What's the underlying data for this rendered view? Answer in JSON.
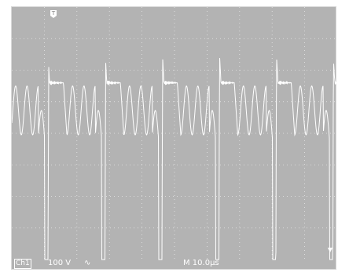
{
  "status": {
    "channel": "Ch1",
    "volts_per_div": "100 V",
    "coupling_symbol": "∿",
    "timebase": "M 10.0μs"
  },
  "markers": {
    "trigger": "T",
    "ground": "▼"
  },
  "colors": {
    "background": "#b3b3b3",
    "trace": "#ffffff",
    "grid": "#e6e6e6"
  },
  "chart_data": {
    "type": "line",
    "grid": true,
    "divisions": {
      "x": 10,
      "y": 8
    },
    "title": "",
    "xlabel": "",
    "ylabel": "",
    "period_divisions": 1.75,
    "waveform_levels_divisions": {
      "spike_high": 2.25,
      "flat_top": 1.6,
      "oscillation_max": 1.5,
      "oscillation_min": -0.05,
      "negative_pulse": -4.0
    }
  }
}
